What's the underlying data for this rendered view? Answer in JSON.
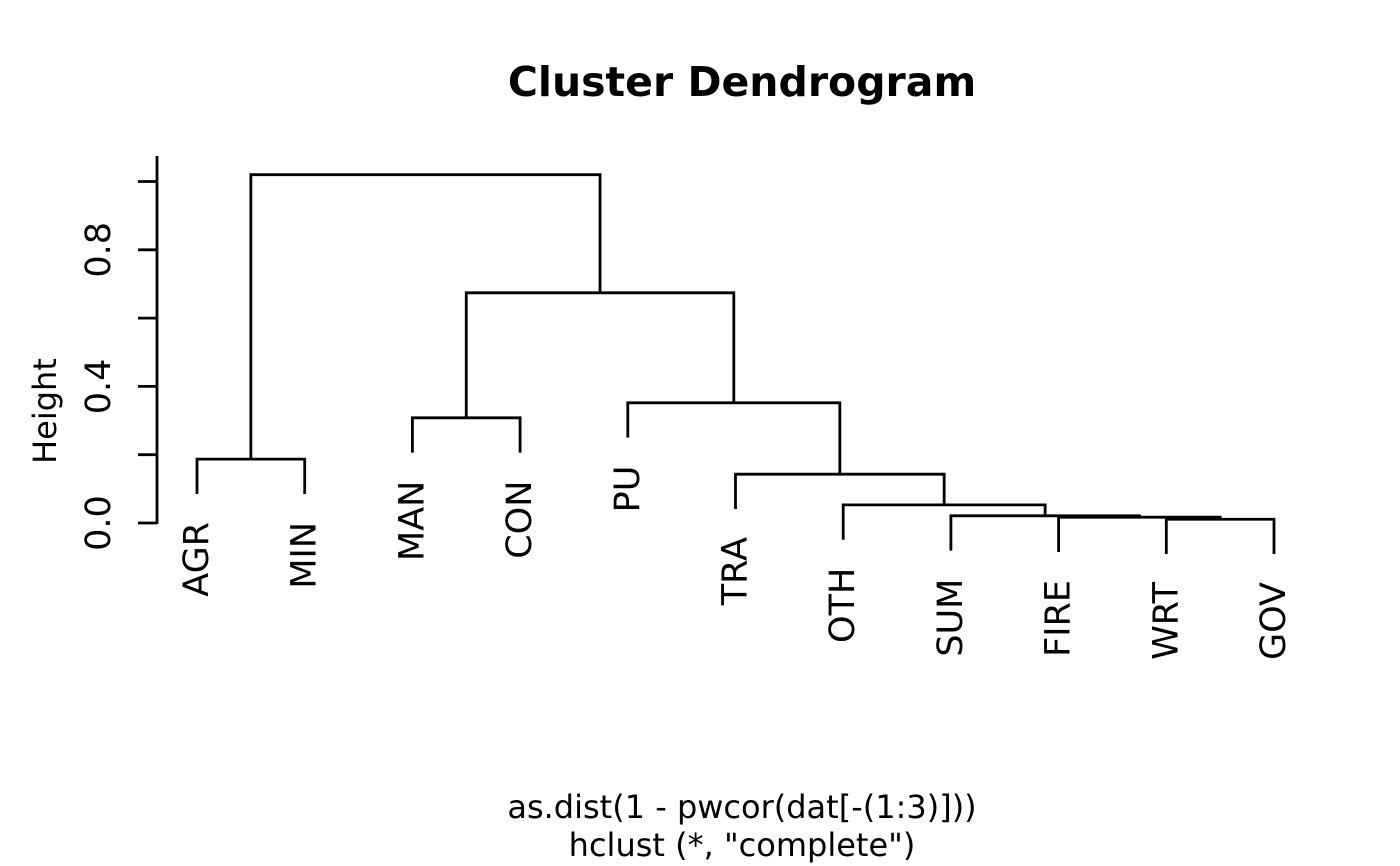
{
  "page": {
    "background_color": "#ffffff",
    "line_color": "#000000",
    "text_color": "#000000"
  },
  "chart_data": {
    "type": "dendrogram",
    "title": "Cluster Dendrogram",
    "ylabel": "Height",
    "xlabel_lines": [
      "as.dist(1 - pwcor(dat[-(1:3)]))",
      "hclust (*, \"complete\")"
    ],
    "clustering_method": "complete",
    "leaves": [
      "AGR",
      "MIN",
      "MAN",
      "CON",
      "PU",
      "TRA",
      "OTH",
      "SUM",
      "FIRE",
      "WRT",
      "GOV"
    ],
    "ylim": [
      0.0,
      1.0
    ],
    "ytick_values": [
      0.0,
      0.2,
      0.4,
      0.6,
      0.8,
      1.0
    ],
    "ytick_labels": [
      "0.0",
      "",
      "0.4",
      "",
      "0.8",
      ""
    ],
    "grid": false,
    "legend": null,
    "hang": 0.1,
    "merges": [
      {
        "cluster": [
          "WRT",
          "GOV"
        ],
        "height": 0.011
      },
      {
        "cluster": [
          "FIRE",
          [
            "WRT",
            "GOV"
          ]
        ],
        "height": 0.017
      },
      {
        "cluster": [
          "SUM",
          [
            "FIRE",
            "WRT",
            "GOV"
          ]
        ],
        "height": 0.021
      },
      {
        "cluster": [
          "OTH",
          [
            "SUM",
            "FIRE",
            "WRT",
            "GOV"
          ]
        ],
        "height": 0.053
      },
      {
        "cluster": [
          "TRA",
          [
            "OTH",
            "SUM",
            "FIRE",
            "WRT",
            "GOV"
          ]
        ],
        "height": 0.143
      },
      {
        "cluster": [
          "AGR",
          "MIN"
        ],
        "height": 0.187
      },
      {
        "cluster": [
          "MAN",
          "CON"
        ],
        "height": 0.308
      },
      {
        "cluster": [
          "PU",
          [
            "TRA",
            "OTH",
            "SUM",
            "FIRE",
            "WRT",
            "GOV"
          ]
        ],
        "height": 0.352
      },
      {
        "cluster": [
          [
            "MAN",
            "CON"
          ],
          [
            "PU",
            "TRA",
            "OTH",
            "SUM",
            "FIRE",
            "WRT",
            "GOV"
          ]
        ],
        "height": 0.674
      },
      {
        "cluster": [
          [
            "AGR",
            "MIN"
          ],
          [
            "MAN",
            "CON",
            "PU",
            "TRA",
            "OTH",
            "SUM",
            "FIRE",
            "WRT",
            "GOV"
          ]
        ],
        "height": 1.02
      }
    ],
    "tree": {
      "height": 1.02,
      "children": [
        {
          "height": 0.187,
          "children": [
            {
              "leaf": "AGR"
            },
            {
              "leaf": "MIN"
            }
          ]
        },
        {
          "height": 0.674,
          "children": [
            {
              "height": 0.308,
              "children": [
                {
                  "leaf": "MAN"
                },
                {
                  "leaf": "CON"
                }
              ]
            },
            {
              "height": 0.352,
              "children": [
                {
                  "leaf": "PU"
                },
                {
                  "height": 0.143,
                  "children": [
                    {
                      "leaf": "TRA"
                    },
                    {
                      "height": 0.053,
                      "children": [
                        {
                          "leaf": "OTH"
                        },
                        {
                          "height": 0.021,
                          "children": [
                            {
                              "leaf": "SUM"
                            },
                            {
                              "height": 0.017,
                              "children": [
                                {
                                  "leaf": "FIRE"
                                },
                                {
                                  "height": 0.011,
                                  "children": [
                                    {
                                      "leaf": "WRT"
                                    },
                                    {
                                      "leaf": "GOV"
                                    }
                                  ]
                                }
                              ]
                            }
                          ]
                        }
                      ]
                    }
                  ]
                }
              ]
            }
          ]
        }
      ]
    }
  }
}
